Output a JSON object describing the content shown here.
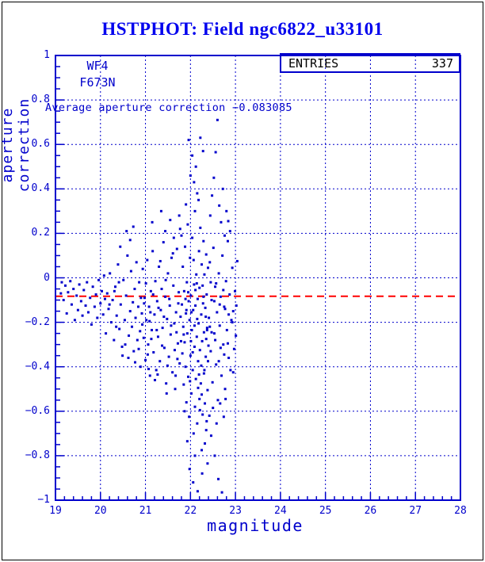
{
  "title": "HSTPHOT: Field ngc6822_u33101",
  "annotations": {
    "chip": "WF4",
    "filter": "F673N",
    "average_text": "Average aperture correction −0.083085"
  },
  "entries_box": {
    "label": "ENTRIES",
    "value": "337"
  },
  "colors": {
    "plot_blue": "#0000cc",
    "title_blue": "#0000ee",
    "avg_line_red": "#ff0000",
    "page_border": "#000000",
    "background": "#ffffff"
  },
  "chart_data": {
    "type": "scatter",
    "title": "HSTPHOT: Field ngc6822_u33101",
    "xlabel": "magnitude",
    "ylabel": "aperture correction",
    "xlim": [
      19,
      28
    ],
    "ylim": [
      -1,
      1
    ],
    "x_major_ticks": [
      19,
      20,
      21,
      22,
      23,
      24,
      25,
      26,
      27,
      28
    ],
    "x_tick_labels": [
      "19",
      "20",
      "21",
      "22",
      "23",
      "24",
      "25",
      "26",
      "27",
      "28"
    ],
    "y_major_ticks": [
      1,
      0.8,
      0.6,
      0.4,
      0.2,
      0,
      -0.2,
      -0.4,
      -0.6,
      -0.8,
      -1
    ],
    "y_tick_labels": [
      "1",
      "0.8",
      "0.6",
      "0.4",
      "0.2",
      "0",
      "−0.2",
      "−0.4",
      "−0.6",
      "−0.8",
      "−1"
    ],
    "x_minor_step": 0.2,
    "y_minor_step": 0.05,
    "grid": "dashed blue lines at major ticks",
    "legend_position": "none",
    "entries": 337,
    "average_aperture_correction": -0.083085,
    "avg_line_style": "red dashed horizontal",
    "marker": "small-square",
    "marker_color": "#0000cc",
    "points": [
      [
        19.12,
        -0.07
      ],
      [
        19.14,
        -0.02
      ],
      [
        19.18,
        -0.1
      ],
      [
        19.22,
        -0.035
      ],
      [
        19.25,
        -0.16
      ],
      [
        19.28,
        -0.065
      ],
      [
        19.33,
        -0.015
      ],
      [
        19.36,
        -0.12
      ],
      [
        19.4,
        -0.05
      ],
      [
        19.43,
        -0.19
      ],
      [
        19.47,
        -0.08
      ],
      [
        19.5,
        -0.145
      ],
      [
        19.53,
        -0.03
      ],
      [
        19.57,
        -0.105
      ],
      [
        19.6,
        -0.17
      ],
      [
        19.63,
        -0.055
      ],
      [
        19.67,
        -0.125
      ],
      [
        19.7,
        -0.02
      ],
      [
        19.73,
        -0.155
      ],
      [
        19.77,
        -0.09
      ],
      [
        19.8,
        -0.21
      ],
      [
        19.83,
        -0.04
      ],
      [
        19.87,
        -0.13
      ],
      [
        19.9,
        -0.075
      ],
      [
        19.93,
        -0.18
      ],
      [
        19.96,
        -0.01
      ],
      [
        20.0,
        -0.115
      ],
      [
        20.03,
        -0.06
      ],
      [
        20.06,
        -0.165
      ],
      [
        20.08,
        0.01
      ],
      [
        20.1,
        -0.095
      ],
      [
        20.12,
        -0.25
      ],
      [
        20.15,
        -0.07
      ],
      [
        20.18,
        -0.14
      ],
      [
        20.21,
        0.02
      ],
      [
        20.24,
        -0.2
      ],
      [
        20.27,
        -0.1
      ],
      [
        20.3,
        -0.28
      ],
      [
        20.33,
        -0.04
      ],
      [
        20.36,
        -0.17
      ],
      [
        20.39,
        0.06
      ],
      [
        20.42,
        -0.23
      ],
      [
        20.45,
        -0.12
      ],
      [
        20.48,
        -0.31
      ],
      [
        20.51,
        -0.01
      ],
      [
        20.54,
        -0.19
      ],
      [
        20.57,
        -0.08
      ],
      [
        20.6,
        0.1
      ],
      [
        20.63,
        -0.26
      ],
      [
        20.66,
        -0.15
      ],
      [
        20.68,
        0.03
      ],
      [
        20.7,
        -0.22
      ],
      [
        20.72,
        -0.11
      ],
      [
        20.74,
        -0.33
      ],
      [
        20.76,
        -0.05
      ],
      [
        20.78,
        -0.18
      ],
      [
        20.8,
        0.07
      ],
      [
        20.82,
        -0.28
      ],
      [
        20.84,
        -0.13
      ],
      [
        20.86,
        -0.02
      ],
      [
        20.88,
        -0.24
      ],
      [
        20.9,
        -0.09
      ],
      [
        20.31,
        -0.06
      ],
      [
        20.44,
        0.14
      ],
      [
        20.58,
        0.21
      ],
      [
        20.66,
        0.17
      ],
      [
        20.73,
        0.23
      ],
      [
        20.49,
        -0.35
      ],
      [
        20.55,
        -0.3
      ],
      [
        20.62,
        -0.36
      ],
      [
        20.77,
        -0.38
      ],
      [
        20.85,
        -0.32
      ],
      [
        20.89,
        -0.4
      ],
      [
        20.2,
        -0.12
      ],
      [
        20.35,
        -0.22
      ],
      [
        20.41,
        -0.02
      ],
      [
        20.92,
        -0.16
      ],
      [
        20.94,
        0.04
      ],
      [
        20.96,
        -0.27
      ],
      [
        20.98,
        -0.09
      ],
      [
        21.0,
        -0.37
      ],
      [
        21.02,
        -0.19
      ],
      [
        21.04,
        0.08
      ],
      [
        21.06,
        -0.3
      ],
      [
        21.08,
        -0.13
      ],
      [
        21.1,
        -0.44
      ],
      [
        21.12,
        -0.06
      ],
      [
        21.14,
        -0.235
      ],
      [
        21.16,
        0.12
      ],
      [
        21.18,
        -0.335
      ],
      [
        21.2,
        -0.165
      ],
      [
        21.22,
        -0.015
      ],
      [
        21.24,
        -0.415
      ],
      [
        21.26,
        -0.105
      ],
      [
        21.28,
        -0.265
      ],
      [
        21.3,
        0.05
      ],
      [
        21.32,
        -0.375
      ],
      [
        21.34,
        -0.145
      ],
      [
        21.36,
        -0.05
      ],
      [
        21.38,
        -0.225
      ],
      [
        21.4,
        0.16
      ],
      [
        21.42,
        -0.315
      ],
      [
        21.44,
        -0.085
      ],
      [
        21.46,
        -0.475
      ],
      [
        21.48,
        -0.185
      ],
      [
        21.5,
        0.02
      ],
      [
        21.52,
        -0.355
      ],
      [
        21.54,
        -0.125
      ],
      [
        21.56,
        -0.255
      ],
      [
        21.58,
        0.09
      ],
      [
        21.6,
        -0.425
      ],
      [
        21.62,
        -0.035
      ],
      [
        21.64,
        -0.205
      ],
      [
        21.66,
        -0.5
      ],
      [
        21.68,
        -0.155
      ],
      [
        21.7,
        0.13
      ],
      [
        21.72,
        -0.295
      ],
      [
        21.74,
        -0.065
      ],
      [
        21.76,
        -0.385
      ],
      [
        21.78,
        -0.175
      ],
      [
        21.8,
        0.19
      ],
      [
        20.93,
        -0.21
      ],
      [
        20.97,
        -0.115
      ],
      [
        21.01,
        -0.025
      ],
      [
        21.05,
        -0.345
      ],
      [
        21.09,
        -0.195
      ],
      [
        21.13,
        -0.275
      ],
      [
        21.17,
        -0.075
      ],
      [
        21.21,
        -0.46
      ],
      [
        21.25,
        -0.235
      ],
      [
        21.29,
        -0.135
      ],
      [
        21.33,
        0.075
      ],
      [
        21.37,
        -0.305
      ],
      [
        21.41,
        -0.175
      ],
      [
        21.45,
        -0.01
      ],
      [
        21.49,
        -0.395
      ],
      [
        21.53,
        -0.095
      ],
      [
        21.57,
        -0.215
      ],
      [
        21.61,
        0.11
      ],
      [
        21.65,
        -0.325
      ],
      [
        21.69,
        -0.245
      ],
      [
        21.73,
        -0.115
      ],
      [
        21.77,
        0.22
      ],
      [
        21.79,
        -0.285
      ],
      [
        21.15,
        0.25
      ],
      [
        21.35,
        0.3
      ],
      [
        21.55,
        0.26
      ],
      [
        21.75,
        0.28
      ],
      [
        21.44,
        0.21
      ],
      [
        21.63,
        0.18
      ],
      [
        21.07,
        -0.41
      ],
      [
        21.27,
        -0.435
      ],
      [
        21.47,
        -0.52
      ],
      [
        21.67,
        -0.44
      ],
      [
        21.71,
        -0.365
      ],
      [
        21.11,
        -0.155
      ],
      [
        21.81,
        -0.12
      ],
      [
        21.82,
        -0.34
      ],
      [
        21.83,
        0.05
      ],
      [
        21.84,
        -0.22
      ],
      [
        21.85,
        -0.48
      ],
      [
        21.86,
        -0.06
      ],
      [
        21.87,
        -0.29
      ],
      [
        21.88,
        0.14
      ],
      [
        21.89,
        -0.4
      ],
      [
        21.9,
        -0.16
      ],
      [
        21.91,
        -0.56
      ],
      [
        21.92,
        -0.02
      ],
      [
        21.93,
        -0.25
      ],
      [
        21.94,
        0.24
      ],
      [
        21.95,
        -0.445
      ],
      [
        21.96,
        -0.105
      ],
      [
        21.97,
        -0.625
      ],
      [
        21.98,
        -0.19
      ],
      [
        21.99,
        0.09
      ],
      [
        22.0,
        -0.35
      ],
      [
        22.0,
        0.46
      ],
      [
        22.01,
        -0.08
      ],
      [
        22.02,
        -0.52
      ],
      [
        22.03,
        -0.235
      ],
      [
        22.04,
        0.18
      ],
      [
        22.05,
        -0.415
      ],
      [
        22.06,
        -0.145
      ],
      [
        22.07,
        -0.7
      ],
      [
        22.08,
        -0.03
      ],
      [
        22.09,
        -0.31
      ],
      [
        22.1,
        0.3
      ],
      [
        22.1,
        -0.58
      ],
      [
        22.11,
        -0.125
      ],
      [
        22.12,
        -0.455
      ],
      [
        22.13,
        0.015
      ],
      [
        22.14,
        -0.265
      ],
      [
        22.15,
        -0.655
      ],
      [
        22.15,
        0.38
      ],
      [
        22.16,
        -0.095
      ],
      [
        22.17,
        -0.375
      ],
      [
        22.18,
        -0.205
      ],
      [
        22.19,
        0.12
      ],
      [
        22.2,
        -0.545
      ],
      [
        22.2,
        -0.045
      ],
      [
        22.21,
        -0.325
      ],
      [
        22.22,
        0.225
      ],
      [
        22.23,
        -0.475
      ],
      [
        22.24,
        -0.165
      ],
      [
        22.25,
        -0.775
      ],
      [
        22.25,
        0.06
      ],
      [
        22.26,
        -0.285
      ],
      [
        22.27,
        -0.615
      ],
      [
        22.28,
        -0.115
      ],
      [
        22.29,
        0.165
      ],
      [
        22.3,
        -0.43
      ],
      [
        22.3,
        -0.245
      ],
      [
        22.31,
        0.015
      ],
      [
        22.32,
        -0.565
      ],
      [
        22.33,
        -0.135
      ],
      [
        22.34,
        -0.355
      ],
      [
        22.35,
        0.105
      ],
      [
        22.35,
        -0.685
      ],
      [
        22.36,
        -0.075
      ],
      [
        22.37,
        -0.225
      ],
      [
        22.38,
        -0.505
      ],
      [
        22.39,
        0.045
      ],
      [
        22.4,
        -0.305
      ],
      [
        21.96,
        0.62
      ],
      [
        22.04,
        0.55
      ],
      [
        22.12,
        0.5
      ],
      [
        21.9,
        0.33
      ],
      [
        22.08,
        0.43
      ],
      [
        22.18,
        0.35
      ],
      [
        22.28,
        0.57
      ],
      [
        22.22,
        0.63
      ],
      [
        21.98,
        -0.86
      ],
      [
        22.06,
        -0.92
      ],
      [
        22.16,
        -0.96
      ],
      [
        22.26,
        -0.88
      ],
      [
        22.1,
        -0.8
      ],
      [
        22.32,
        -0.745
      ],
      [
        22.38,
        -0.835
      ],
      [
        21.93,
        -0.735
      ],
      [
        22.36,
        -0.645
      ],
      [
        21.87,
        -0.6
      ],
      [
        22.02,
        -0.155
      ],
      [
        22.14,
        -0.025
      ],
      [
        22.24,
        -0.395
      ],
      [
        22.34,
        -0.175
      ],
      [
        21.85,
        -0.255
      ],
      [
        21.95,
        -0.065
      ],
      [
        22.05,
        -0.335
      ],
      [
        22.15,
        -0.185
      ],
      [
        22.25,
        -0.525
      ],
      [
        22.35,
        -0.275
      ],
      [
        21.89,
        -0.095
      ],
      [
        21.99,
        -0.465
      ],
      [
        22.09,
        -0.215
      ],
      [
        22.19,
        -0.435
      ],
      [
        22.29,
        -0.085
      ],
      [
        22.39,
        -0.375
      ],
      [
        21.91,
        -0.145
      ],
      [
        22.01,
        -0.285
      ],
      [
        22.11,
        -0.055
      ],
      [
        22.21,
        -0.595
      ],
      [
        22.31,
        -0.415
      ],
      [
        22.37,
        -0.235
      ],
      [
        22.07,
        0.08
      ],
      [
        22.17,
        -0.495
      ],
      [
        22.27,
        -0.035
      ],
      [
        22.41,
        -0.18
      ],
      [
        22.43,
        0.07
      ],
      [
        22.45,
        -0.33
      ],
      [
        22.47,
        -0.1
      ],
      [
        22.49,
        -0.47
      ],
      [
        22.51,
        0.135
      ],
      [
        22.53,
        -0.25
      ],
      [
        22.55,
        -0.04
      ],
      [
        22.57,
        -0.39
      ],
      [
        22.59,
        -0.155
      ],
      [
        22.6,
        0.71
      ],
      [
        22.61,
        -0.55
      ],
      [
        22.63,
        0.02
      ],
      [
        22.65,
        -0.215
      ],
      [
        22.67,
        -0.085
      ],
      [
        22.69,
        -0.44
      ],
      [
        22.71,
        0.1
      ],
      [
        22.73,
        -0.3
      ],
      [
        22.75,
        -0.13
      ],
      [
        22.77,
        -0.5
      ],
      [
        22.79,
        -0.015
      ],
      [
        22.81,
        -0.235
      ],
      [
        22.83,
        0.165
      ],
      [
        22.85,
        -0.36
      ],
      [
        22.87,
        -0.075
      ],
      [
        22.89,
        -0.415
      ],
      [
        22.91,
        -0.19
      ],
      [
        22.93,
        0.045
      ],
      [
        22.95,
        -0.15
      ],
      [
        22.97,
        -0.32
      ],
      [
        22.99,
        -0.06
      ],
      [
        23.01,
        -0.26
      ],
      [
        23.04,
        0.075
      ],
      [
        22.42,
        -0.62
      ],
      [
        22.46,
        -0.71
      ],
      [
        22.5,
        -0.585
      ],
      [
        22.54,
        -0.8
      ],
      [
        22.58,
        -0.655
      ],
      [
        22.62,
        -0.905
      ],
      [
        22.66,
        -0.565
      ],
      [
        22.7,
        -0.965
      ],
      [
        22.74,
        -0.625
      ],
      [
        22.78,
        -0.545
      ],
      [
        22.44,
        0.28
      ],
      [
        22.48,
        0.37
      ],
      [
        22.52,
        0.45
      ],
      [
        22.56,
        0.565
      ],
      [
        22.64,
        0.325
      ],
      [
        22.68,
        0.25
      ],
      [
        22.72,
        0.4
      ],
      [
        22.76,
        0.19
      ],
      [
        22.8,
        0.3
      ],
      [
        22.84,
        0.255
      ],
      [
        22.88,
        0.21
      ],
      [
        22.45,
        -0.02
      ],
      [
        22.55,
        -0.28
      ],
      [
        22.65,
        -0.12
      ],
      [
        22.75,
        -0.345
      ],
      [
        22.85,
        -0.165
      ],
      [
        22.95,
        -0.425
      ],
      [
        22.43,
        -0.22
      ],
      [
        22.53,
        -0.105
      ],
      [
        22.63,
        -0.375
      ],
      [
        22.73,
        -0.055
      ],
      [
        22.83,
        -0.295
      ],
      [
        22.93,
        -0.2
      ],
      [
        22.47,
        -0.245
      ],
      [
        22.57,
        -0.025
      ],
      [
        22.67,
        -0.315
      ],
      [
        22.77,
        -0.14
      ],
      [
        23.02,
        -0.125
      ]
    ]
  }
}
